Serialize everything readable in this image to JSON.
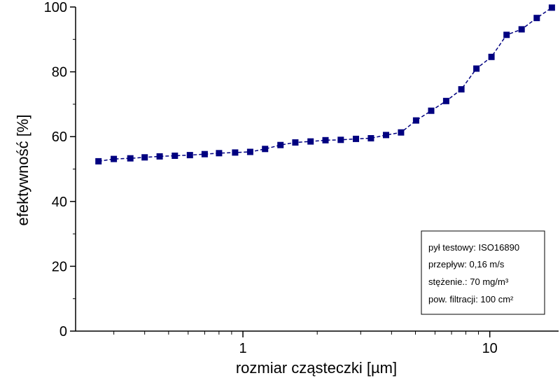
{
  "chart_data": {
    "type": "line",
    "title": "",
    "xlabel": "rozmiar cząsteczki [µm]",
    "ylabel": "efektywność [%]",
    "x_scale": "log",
    "xlim": [
      0.21,
      19
    ],
    "ylim": [
      0,
      100
    ],
    "grid": false,
    "legend_position": "bottom-right",
    "x_ticks": [
      {
        "value": 1,
        "label": "1"
      },
      {
        "value": 10,
        "label": "10"
      }
    ],
    "y_ticks": [
      {
        "value": 0,
        "label": "0"
      },
      {
        "value": 20,
        "label": "20"
      },
      {
        "value": 40,
        "label": "40"
      },
      {
        "value": 60,
        "label": "60"
      },
      {
        "value": 80,
        "label": "80"
      },
      {
        "value": 100,
        "label": "100"
      }
    ],
    "series": [
      {
        "color": "#000080",
        "marker": "square",
        "x": [
          0.26,
          0.3,
          0.35,
          0.4,
          0.46,
          0.53,
          0.61,
          0.7,
          0.8,
          0.93,
          1.07,
          1.23,
          1.42,
          1.63,
          1.88,
          2.16,
          2.49,
          2.87,
          3.3,
          3.8,
          4.37,
          5.03,
          5.79,
          6.66,
          7.67,
          8.83,
          10.16,
          11.7,
          13.46,
          15.5,
          17.84
        ],
        "y": [
          52.4,
          53.1,
          53.3,
          53.6,
          53.9,
          54.1,
          54.3,
          54.6,
          54.9,
          55.1,
          55.3,
          56.2,
          57.4,
          58.2,
          58.5,
          58.9,
          59.0,
          59.3,
          59.5,
          60.5,
          61.3,
          65.0,
          68.0,
          71.0,
          74.6,
          81.0,
          84.6,
          91.4,
          93.1,
          96.6,
          99.8
        ]
      }
    ],
    "legend_lines": [
      "pył testowy: ISO16890",
      "przepływ: 0,16 m/s",
      "stężenie.: 70 mg/m³",
      "pow. filtracji:  100 cm²"
    ]
  },
  "colors": {
    "series": "#000080",
    "axis": "#000000",
    "background": "#ffffff"
  }
}
